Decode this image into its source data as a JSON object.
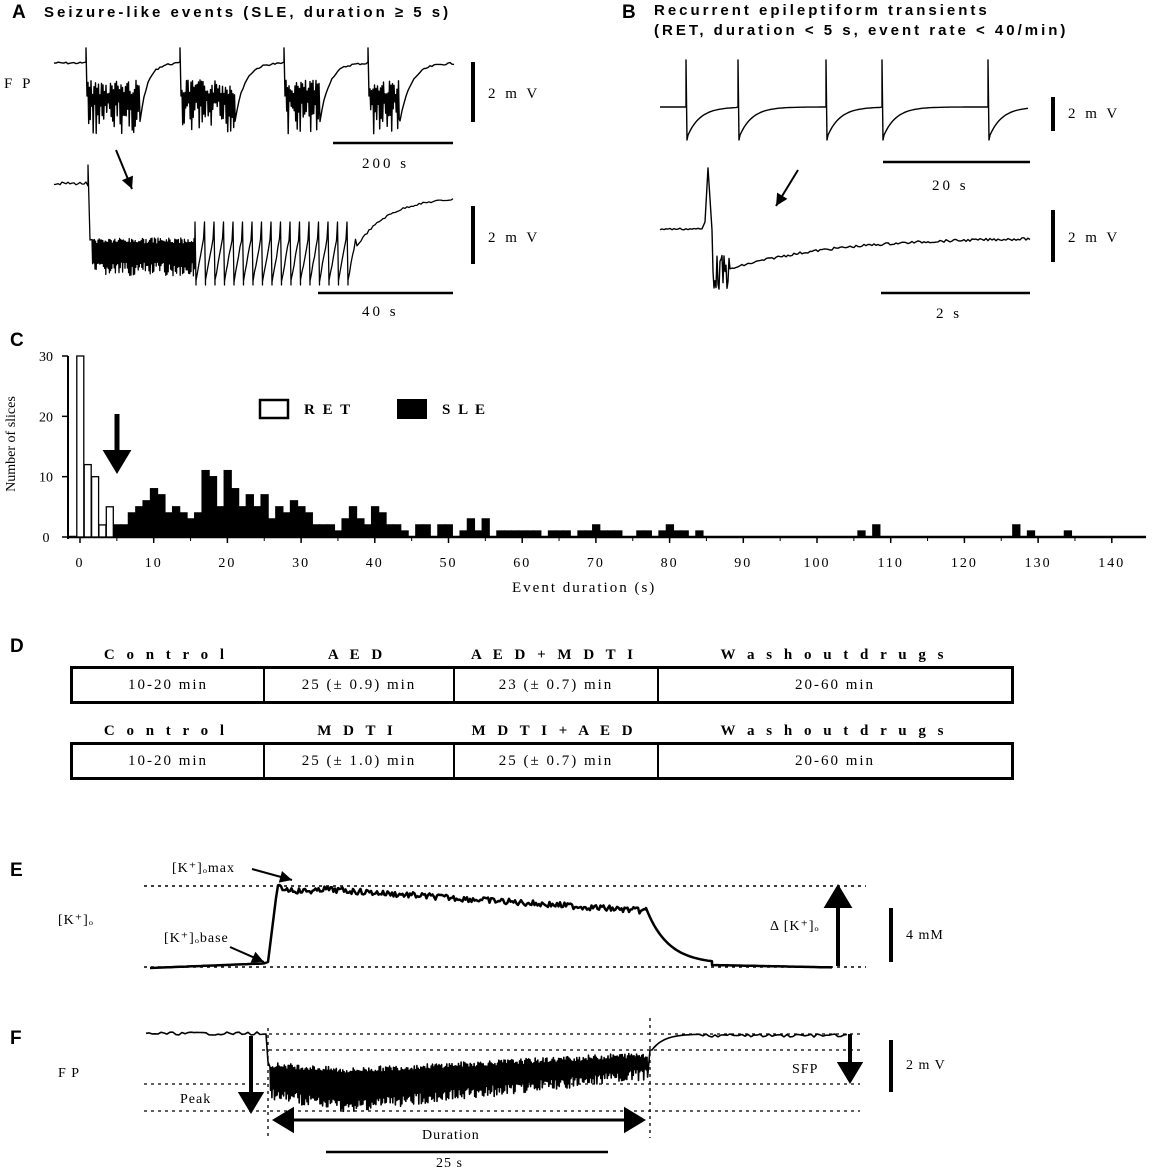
{
  "panels": {
    "A": {
      "label": "A",
      "title": "Seizure-like events (SLE, duration ≥ 5 s)",
      "fp_label": "F P",
      "scale_top_mv": "2  m V",
      "scale_top_time": "200  s",
      "scale_bottom_mv": "2  m V",
      "scale_bottom_time": "40  s"
    },
    "B": {
      "label": "B",
      "title_line1": "Recurrent epileptiform transients",
      "title_line2": "(RET, duration < 5 s, event rate < 40/min)",
      "scale_top_mv": "2  m V",
      "scale_top_time": "20  s",
      "scale_bottom_mv": "2  m V",
      "scale_bottom_time": "2  s"
    },
    "C": {
      "label": "C",
      "legend_ret": "R E T",
      "legend_sle": "S L E"
    },
    "D": {
      "label": "D",
      "protocol1": {
        "headers": [
          "C o n t r o l",
          "A E D",
          "A E D  +  M D T I",
          "W a s h  o u t  d r u g s"
        ],
        "cells": [
          "10-20  min",
          "25  (± 0.9)  min",
          "23  (± 0.7)  min",
          "20-60  min"
        ]
      },
      "protocol2": {
        "headers": [
          "C o n t r o l",
          "M D T I",
          "M D T I  +  A E D",
          "W a s h  o u t  d r u g s"
        ],
        "cells": [
          "10-20  min",
          "25  (± 1.0)  min",
          "25  (± 0.7)  min",
          "20-60  min"
        ]
      }
    },
    "E": {
      "label": "E",
      "y_label": "[K⁺]ₒ",
      "max_label": "[K⁺]ₒmax",
      "base_label": "[K⁺]ₒbase",
      "delta_label": "Δ [K⁺]ₒ",
      "scale": "4  mM"
    },
    "F": {
      "label": "F",
      "y_label": "F P",
      "peak_label": "Peak",
      "sfp_label": "SFP",
      "duration_label": "Duration",
      "scale_time": "25  s",
      "scale_mv": "2  m V"
    }
  },
  "chart_data": {
    "type": "bar",
    "xlabel": "Event duration (s)",
    "ylabel": "Number of slices",
    "xlim": [
      0,
      140
    ],
    "ylim": [
      0,
      30
    ],
    "x_ticks": [
      0,
      10,
      20,
      30,
      40,
      50,
      60,
      70,
      80,
      90,
      100,
      110,
      120,
      130,
      140
    ],
    "y_ticks": [
      0,
      10,
      20,
      30
    ],
    "legend_position": "top-center",
    "series": [
      {
        "name": "RET",
        "fill": "#ffffff",
        "x": [
          0,
          1,
          2,
          3,
          4
        ],
        "values": [
          30,
          12,
          10,
          2,
          5
        ]
      },
      {
        "name": "SLE",
        "fill": "#000000",
        "x": [
          5,
          6,
          7,
          8,
          9,
          10,
          11,
          12,
          13,
          14,
          15,
          16,
          17,
          18,
          19,
          20,
          21,
          22,
          23,
          24,
          25,
          26,
          27,
          28,
          29,
          30,
          31,
          32,
          33,
          34,
          35,
          36,
          37,
          38,
          39,
          40,
          41,
          42,
          43,
          44,
          45,
          46,
          47,
          48,
          49,
          50,
          51,
          52,
          53,
          54,
          55,
          56,
          57,
          58,
          59,
          60,
          61,
          62,
          63,
          64,
          65,
          66,
          67,
          68,
          69,
          70,
          71,
          72,
          73,
          74,
          75,
          76,
          77,
          78,
          79,
          80,
          81,
          82,
          83,
          84,
          85,
          106,
          108,
          127,
          129,
          134
        ],
        "values": [
          2,
          2,
          4,
          5,
          6,
          8,
          7,
          4,
          5,
          4,
          3,
          4,
          11,
          10,
          5,
          11,
          8,
          5,
          7,
          5,
          7,
          3,
          5,
          4,
          6,
          5,
          4,
          2,
          2,
          2,
          1,
          3,
          5,
          3,
          2,
          5,
          4,
          2,
          2,
          1,
          0,
          2,
          2,
          0,
          2,
          2,
          0,
          1,
          3,
          1,
          3,
          0,
          1,
          1,
          1,
          1,
          1,
          1,
          0,
          1,
          1,
          1,
          0,
          1,
          1,
          2,
          1,
          1,
          1,
          0,
          0,
          1,
          1,
          0,
          1,
          2,
          1,
          1,
          0,
          1,
          0,
          1,
          2,
          2,
          1,
          1
        ]
      }
    ]
  }
}
